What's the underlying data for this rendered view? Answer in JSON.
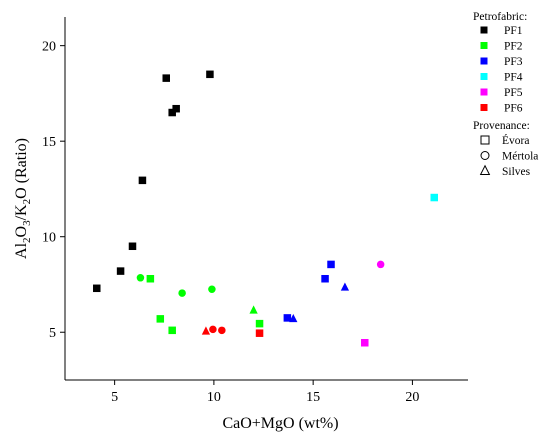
{
  "chart_data": {
    "type": "scatter",
    "xlabel": "CaO+MgO (wt%)",
    "ylabel_parts": [
      "Al",
      "2",
      "O",
      "3",
      "/K",
      "2",
      "O (Ratio)"
    ],
    "xlim": [
      2.5,
      22.8
    ],
    "ylim": [
      2.5,
      21.5
    ],
    "x_ticks": [
      5,
      10,
      15,
      20
    ],
    "y_ticks": [
      5,
      10,
      15,
      20
    ],
    "grid": false,
    "legend_placement": "right",
    "legend_petrofabric_title": "Petrofabric:",
    "legend_provenance_title": "Provenance:",
    "series": [
      {
        "name": "PF1",
        "color": "#000000",
        "points": [
          {
            "x": 4.1,
            "y": 7.3,
            "marker": "square"
          },
          {
            "x": 5.3,
            "y": 8.2,
            "marker": "square"
          },
          {
            "x": 5.9,
            "y": 9.5,
            "marker": "square"
          },
          {
            "x": 6.4,
            "y": 12.95,
            "marker": "square"
          },
          {
            "x": 7.6,
            "y": 18.3,
            "marker": "square"
          },
          {
            "x": 7.9,
            "y": 16.5,
            "marker": "square"
          },
          {
            "x": 8.1,
            "y": 16.7,
            "marker": "square"
          },
          {
            "x": 9.8,
            "y": 18.5,
            "marker": "square"
          }
        ]
      },
      {
        "name": "PF2",
        "color": "#00ff00",
        "points": [
          {
            "x": 6.3,
            "y": 7.85,
            "marker": "circle"
          },
          {
            "x": 6.8,
            "y": 7.8,
            "marker": "square"
          },
          {
            "x": 7.3,
            "y": 5.7,
            "marker": "square"
          },
          {
            "x": 7.9,
            "y": 5.1,
            "marker": "square"
          },
          {
            "x": 8.4,
            "y": 7.05,
            "marker": "circle"
          },
          {
            "x": 9.9,
            "y": 7.25,
            "marker": "circle"
          },
          {
            "x": 12.0,
            "y": 6.15,
            "marker": "triangle"
          },
          {
            "x": 12.3,
            "y": 5.45,
            "marker": "square"
          }
        ]
      },
      {
        "name": "PF3",
        "color": "#0000ff",
        "points": [
          {
            "x": 13.7,
            "y": 5.75,
            "marker": "square"
          },
          {
            "x": 14.0,
            "y": 5.7,
            "marker": "triangle"
          },
          {
            "x": 15.6,
            "y": 7.8,
            "marker": "square"
          },
          {
            "x": 15.9,
            "y": 8.55,
            "marker": "square"
          },
          {
            "x": 16.6,
            "y": 7.35,
            "marker": "triangle"
          }
        ]
      },
      {
        "name": "PF4",
        "color": "#00ffff",
        "points": [
          {
            "x": 21.1,
            "y": 12.05,
            "marker": "square"
          }
        ]
      },
      {
        "name": "PF5",
        "color": "#ff00ff",
        "points": [
          {
            "x": 17.6,
            "y": 4.45,
            "marker": "square"
          },
          {
            "x": 18.4,
            "y": 8.55,
            "marker": "circle"
          }
        ]
      },
      {
        "name": "PF6",
        "color": "#ff0000",
        "points": [
          {
            "x": 9.6,
            "y": 5.05,
            "marker": "triangle"
          },
          {
            "x": 9.95,
            "y": 5.15,
            "marker": "circle"
          },
          {
            "x": 10.4,
            "y": 5.1,
            "marker": "circle"
          },
          {
            "x": 12.3,
            "y": 4.95,
            "marker": "square"
          }
        ]
      }
    ],
    "provenance": [
      {
        "name": "Évora",
        "marker": "square"
      },
      {
        "name": "Mértola",
        "marker": "circle"
      },
      {
        "name": "Silves",
        "marker": "triangle"
      }
    ]
  }
}
